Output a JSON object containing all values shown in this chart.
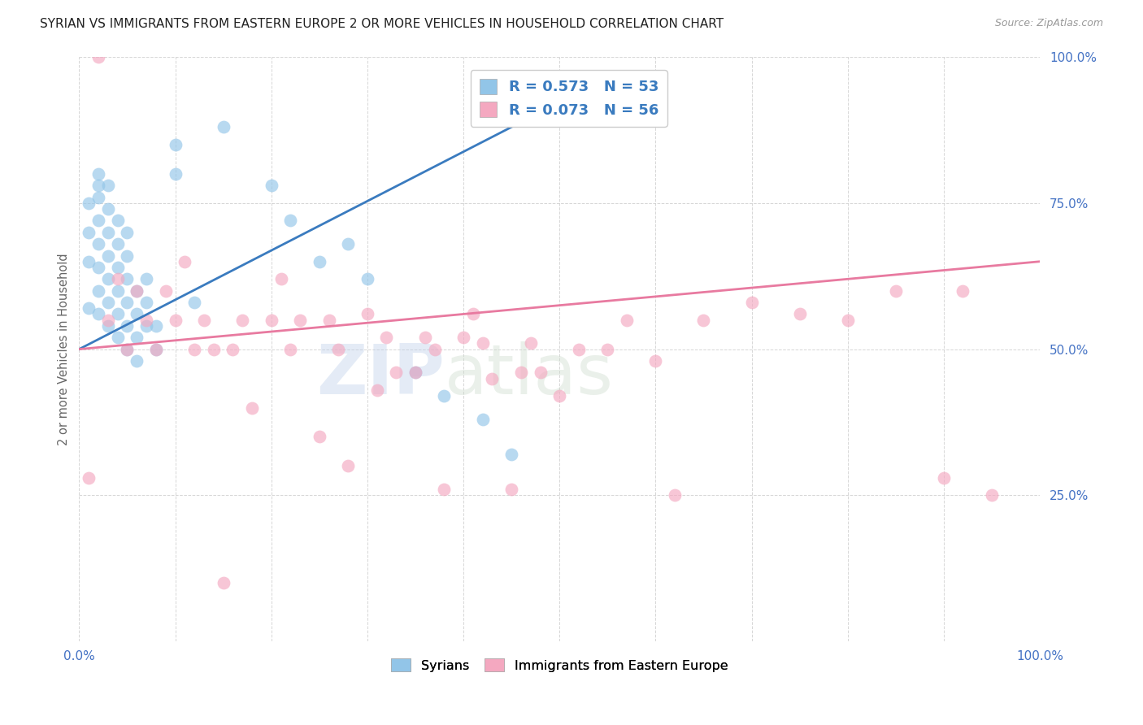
{
  "title": "SYRIAN VS IMMIGRANTS FROM EASTERN EUROPE 2 OR MORE VEHICLES IN HOUSEHOLD CORRELATION CHART",
  "source": "Source: ZipAtlas.com",
  "ylabel": "2 or more Vehicles in Household",
  "watermark_zip": "ZIP",
  "watermark_atlas": "atlas",
  "blue_R": 0.573,
  "blue_N": 53,
  "pink_R": 0.073,
  "pink_N": 56,
  "xlim": [
    0,
    100
  ],
  "ylim": [
    0,
    100
  ],
  "blue_color": "#92c5e8",
  "pink_color": "#f4a8c0",
  "blue_line_color": "#3a7bbf",
  "pink_line_color": "#e87aa0",
  "legend_text_color": "#3a7bbf",
  "title_color": "#222222",
  "axis_label_color": "#4472c4",
  "background_color": "#ffffff",
  "blue_line_x0": 0,
  "blue_line_y0": 50,
  "blue_line_x1": 45,
  "blue_line_y1": 88,
  "pink_line_x0": 0,
  "pink_line_y0": 50,
  "pink_line_x1": 100,
  "pink_line_y1": 65,
  "blue_scatter_x": [
    1,
    1,
    1,
    1,
    2,
    2,
    2,
    2,
    2,
    2,
    2,
    2,
    3,
    3,
    3,
    3,
    3,
    3,
    3,
    4,
    4,
    4,
    4,
    4,
    4,
    5,
    5,
    5,
    5,
    5,
    5,
    6,
    6,
    6,
    6,
    7,
    7,
    7,
    8,
    8,
    10,
    10,
    12,
    15,
    20,
    22,
    25,
    28,
    30,
    35,
    38,
    42,
    45
  ],
  "blue_scatter_y": [
    57,
    65,
    70,
    75,
    56,
    60,
    64,
    68,
    72,
    76,
    78,
    80,
    54,
    58,
    62,
    66,
    70,
    74,
    78,
    52,
    56,
    60,
    64,
    68,
    72,
    50,
    54,
    58,
    62,
    66,
    70,
    48,
    52,
    56,
    60,
    54,
    58,
    62,
    50,
    54,
    80,
    85,
    58,
    88,
    78,
    72,
    65,
    68,
    62,
    46,
    42,
    38,
    32
  ],
  "pink_scatter_x": [
    1,
    2,
    3,
    4,
    5,
    6,
    7,
    8,
    9,
    10,
    11,
    12,
    13,
    14,
    15,
    16,
    17,
    18,
    20,
    21,
    22,
    23,
    25,
    26,
    27,
    28,
    30,
    31,
    32,
    33,
    35,
    36,
    37,
    38,
    40,
    41,
    42,
    43,
    45,
    46,
    47,
    48,
    50,
    52,
    55,
    57,
    60,
    62,
    65,
    70,
    75,
    80,
    85,
    90,
    92,
    95
  ],
  "pink_scatter_y": [
    28,
    100,
    55,
    62,
    50,
    60,
    55,
    50,
    60,
    55,
    65,
    50,
    55,
    50,
    10,
    50,
    55,
    40,
    55,
    62,
    50,
    55,
    35,
    55,
    50,
    30,
    56,
    43,
    52,
    46,
    46,
    52,
    50,
    26,
    52,
    56,
    51,
    45,
    26,
    46,
    51,
    46,
    42,
    50,
    50,
    55,
    48,
    25,
    55,
    58,
    56,
    55,
    60,
    28,
    60,
    25
  ]
}
